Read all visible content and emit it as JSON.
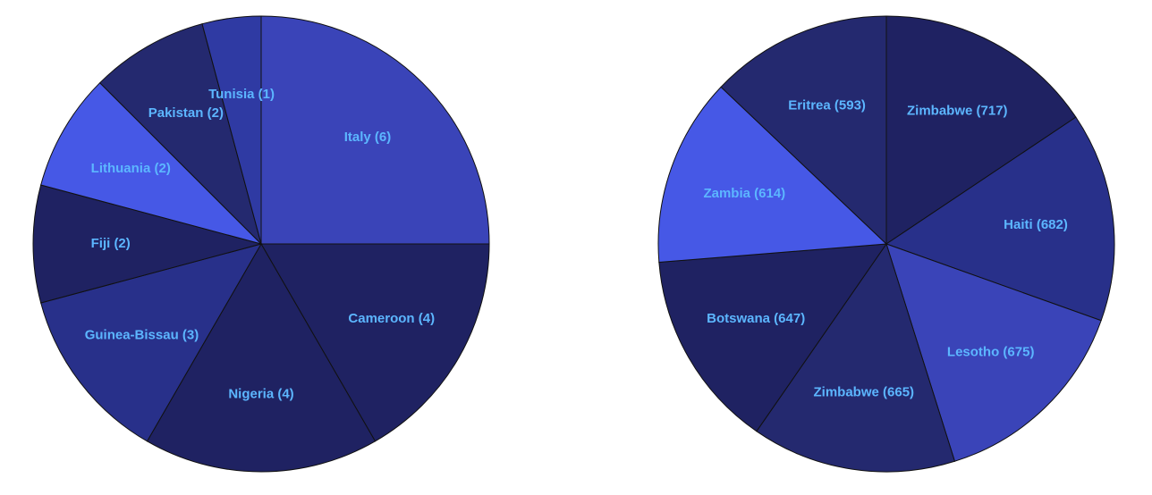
{
  "chart_data": [
    {
      "type": "pie",
      "categories": [
        "Italy",
        "Cameroon",
        "Nigeria",
        "Guinea-Bissau",
        "Fiji",
        "Lithuania",
        "Pakistan",
        "Tunisia"
      ],
      "values": [
        6,
        4,
        4,
        3,
        2,
        2,
        2,
        1
      ],
      "labels": [
        "Italy (6)",
        "Cameroon (4)",
        "Nigeria (4)",
        "Guinea-Bissau (3)",
        "Fiji (2)",
        "Lithuania (2)",
        "Pakistan (2)",
        "Tunisia (1)"
      ],
      "colors": [
        "#3a44b8",
        "#1f2262",
        "#1f2262",
        "#28308a",
        "#1f2262",
        "#4658e6",
        "#24296f",
        "#2f3aa3"
      ],
      "title": "",
      "legend": "none",
      "start_angle_deg": 0,
      "direction": "clockwise"
    },
    {
      "type": "pie",
      "categories": [
        "Zimbabwe",
        "Haiti",
        "Lesotho",
        "Zimbabwe",
        "Botswana",
        "Zambia",
        "Eritrea"
      ],
      "values": [
        717,
        682,
        675,
        665,
        647,
        614,
        593
      ],
      "labels": [
        "Zimbabwe (717)",
        "Haiti (682)",
        "Lesotho (675)",
        "Zimbabwe (665)",
        "Botswana (647)",
        "Zambia (614)",
        "Eritrea (593)"
      ],
      "colors": [
        "#1f2262",
        "#28308a",
        "#3a44b8",
        "#24296f",
        "#1f2262",
        "#4658e6",
        "#24296f"
      ],
      "title": "",
      "legend": "none",
      "start_angle_deg": 0,
      "direction": "clockwise"
    }
  ],
  "style": {
    "label_color": "#5cb6ff",
    "stroke_color": "#111111"
  }
}
